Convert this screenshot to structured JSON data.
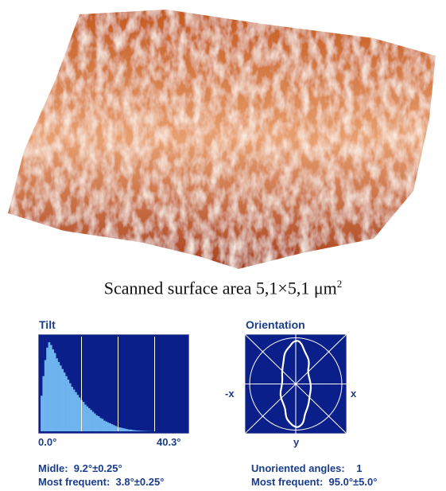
{
  "caption": {
    "text": "Scanned surface area 5,1×5,1 μm",
    "sup": "2"
  },
  "tilt": {
    "title": "Tilt",
    "x_min_label": "0.0°",
    "x_max_label": "40.3°",
    "middle_label": "Midle:",
    "middle_value": "9.2°±0.25°",
    "most_label": "Most frequent:",
    "most_value": "3.8°±0.25°",
    "colors": {
      "bg": "#0a1f8a",
      "bar": "#6fb4ee",
      "grid": "#ffffff"
    }
  },
  "orientation": {
    "title": "Orientation",
    "left_label": "-x",
    "right_label": "x",
    "bottom_label": "y",
    "unoriented_label": "Unoriented angles:",
    "unoriented_value": "1",
    "most_label": "Most frequent:",
    "most_value": "95.0°±5.0°",
    "colors": {
      "bg": "#0a1f8a",
      "line": "#ffffff"
    }
  },
  "chart_data": {
    "type": "bar",
    "title": "Tilt",
    "xlim": [
      0.0,
      40.3
    ],
    "tick_labels": [
      "0.0°",
      "40.3°"
    ],
    "values": [
      0.4,
      0.62,
      0.8,
      0.94,
      1.0,
      0.97,
      0.92,
      0.88,
      0.82,
      0.78,
      0.74,
      0.7,
      0.66,
      0.62,
      0.58,
      0.54,
      0.5,
      0.47,
      0.44,
      0.41,
      0.38,
      0.35,
      0.33,
      0.3,
      0.28,
      0.26,
      0.24,
      0.22,
      0.2,
      0.18,
      0.17,
      0.15,
      0.14,
      0.12,
      0.11,
      0.1,
      0.09,
      0.08,
      0.07,
      0.06,
      0.05,
      0.045,
      0.04,
      0.035,
      0.03,
      0.025,
      0.02,
      0.02,
      0.015,
      0.012,
      0.01,
      0.008,
      0.006,
      0.005,
      0.004,
      0.003,
      0.002,
      0.002,
      0.001,
      0.001
    ]
  }
}
